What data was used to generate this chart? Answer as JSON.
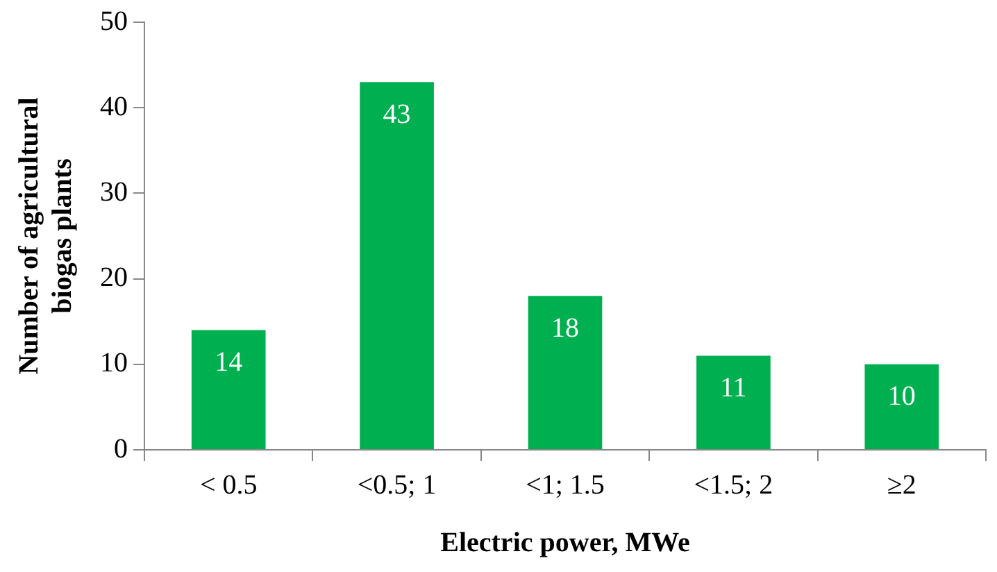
{
  "chart_data": {
    "type": "bar",
    "xlabel": "Electric power, MWe",
    "ylabel": "Number of agricultural\nbiogas plants",
    "categories": [
      "< 0.5",
      "<0.5; 1",
      "<1; 1.5",
      "<1.5; 2",
      "≥2"
    ],
    "values": [
      14,
      43,
      18,
      11,
      10
    ],
    "color": "#00b050",
    "ylim": [
      0,
      50
    ],
    "yticks": [
      0,
      10,
      20,
      30,
      40,
      50
    ],
    "grid": false,
    "legend": false,
    "data_labels": true
  }
}
